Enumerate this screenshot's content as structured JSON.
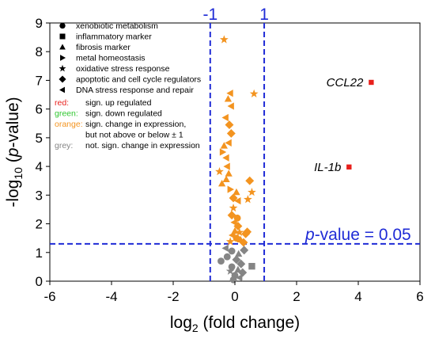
{
  "chart_data": {
    "type": "scatter",
    "xlabel": "log₂ (fold change)",
    "ylabel": "-log₁₀ (p-value)",
    "xlim": [
      -6,
      6
    ],
    "ylim": [
      0,
      9
    ],
    "xticks": [
      -6,
      -4,
      -2,
      0,
      2,
      4,
      6
    ],
    "yticks": [
      0,
      1,
      2,
      3,
      4,
      5,
      6,
      7,
      8,
      9
    ],
    "thresholds": {
      "vertical": [
        {
          "x": -0.8,
          "label": "-1"
        },
        {
          "x": 0.95,
          "label": "1"
        }
      ],
      "horizontal": {
        "y": 1.3,
        "label_prefix": "p",
        "label_suffix": "-value = 0.05"
      }
    },
    "marker_legend": [
      {
        "shape": "circle",
        "label": "xenobiotic metabolism"
      },
      {
        "shape": "square",
        "label": "inflammatory marker"
      },
      {
        "shape": "triangle-up",
        "label": "fibrosis marker"
      },
      {
        "shape": "triangle-right",
        "label": "metal homeostasis"
      },
      {
        "shape": "star",
        "label": "oxidative stress response"
      },
      {
        "shape": "diamond",
        "label": "apoptotic and cell cycle regulators"
      },
      {
        "shape": "triangle-left",
        "label": "DNA stress response and repair"
      }
    ],
    "color_legend": [
      {
        "key": "red:",
        "desc": "sign. up regulated",
        "color": "#e8201c"
      },
      {
        "key": "green:",
        "desc": "sign. down regulated",
        "color": "#2fc72f"
      },
      {
        "key": "orange:",
        "desc": "sign. change in expression,",
        "desc2": "but not above or below ± 1",
        "color": "#f39420"
      },
      {
        "key": "grey:",
        "desc": "not. sign. change in expression",
        "color": "#858585"
      }
    ],
    "colors": {
      "red": "#e8201c",
      "orange": "#f39420",
      "grey": "#858585",
      "threshold": "#1f2bd6"
    },
    "labeled_points": [
      {
        "label": "CCL22",
        "x": 4.42,
        "y": 6.93,
        "shape": "square",
        "color": "red"
      },
      {
        "label": "IL-1b",
        "x": 3.7,
        "y": 3.98,
        "shape": "square",
        "color": "red"
      }
    ],
    "points": [
      {
        "x": -0.35,
        "y": 8.42,
        "shape": "star",
        "color": "orange"
      },
      {
        "x": 0.62,
        "y": 6.53,
        "shape": "star",
        "color": "orange"
      },
      {
        "x": -0.15,
        "y": 6.55,
        "shape": "triangle-left",
        "color": "orange"
      },
      {
        "x": -0.12,
        "y": 6.1,
        "shape": "triangle-left",
        "color": "orange"
      },
      {
        "x": -0.22,
        "y": 6.35,
        "shape": "triangle-up",
        "color": "orange"
      },
      {
        "x": -0.3,
        "y": 5.7,
        "shape": "triangle-left",
        "color": "orange"
      },
      {
        "x": -0.18,
        "y": 5.45,
        "shape": "diamond",
        "color": "orange"
      },
      {
        "x": -0.12,
        "y": 5.15,
        "shape": "diamond",
        "color": "orange"
      },
      {
        "x": -0.2,
        "y": 4.82,
        "shape": "triangle-left",
        "color": "orange"
      },
      {
        "x": -0.35,
        "y": 4.72,
        "shape": "triangle-up",
        "color": "orange"
      },
      {
        "x": -0.4,
        "y": 4.5,
        "shape": "triangle-right",
        "color": "orange"
      },
      {
        "x": -0.28,
        "y": 4.3,
        "shape": "triangle-left",
        "color": "orange"
      },
      {
        "x": -0.25,
        "y": 4.0,
        "shape": "triangle-left",
        "color": "orange"
      },
      {
        "x": -0.5,
        "y": 3.82,
        "shape": "star",
        "color": "orange"
      },
      {
        "x": -0.2,
        "y": 3.75,
        "shape": "triangle-up",
        "color": "orange"
      },
      {
        "x": -0.28,
        "y": 3.55,
        "shape": "triangle-up",
        "color": "orange"
      },
      {
        "x": -0.42,
        "y": 3.4,
        "shape": "triangle-up",
        "color": "orange"
      },
      {
        "x": -0.15,
        "y": 3.2,
        "shape": "triangle-right",
        "color": "orange"
      },
      {
        "x": 0.05,
        "y": 3.1,
        "shape": "triangle-up",
        "color": "orange"
      },
      {
        "x": -0.05,
        "y": 2.9,
        "shape": "diamond",
        "color": "orange"
      },
      {
        "x": 0.1,
        "y": 2.8,
        "shape": "triangle-left",
        "color": "orange"
      },
      {
        "x": 0.48,
        "y": 3.5,
        "shape": "diamond",
        "color": "orange"
      },
      {
        "x": 0.55,
        "y": 3.1,
        "shape": "star",
        "color": "orange"
      },
      {
        "x": 0.42,
        "y": 2.85,
        "shape": "star",
        "color": "orange"
      },
      {
        "x": -0.05,
        "y": 2.55,
        "shape": "star",
        "color": "orange"
      },
      {
        "x": -0.1,
        "y": 2.3,
        "shape": "diamond",
        "color": "orange"
      },
      {
        "x": 0.08,
        "y": 2.2,
        "shape": "circle",
        "color": "orange"
      },
      {
        "x": -0.02,
        "y": 2.05,
        "shape": "triangle-left",
        "color": "orange"
      },
      {
        "x": 0.1,
        "y": 1.92,
        "shape": "diamond",
        "color": "orange"
      },
      {
        "x": 0.0,
        "y": 1.75,
        "shape": "triangle-up",
        "color": "orange"
      },
      {
        "x": 0.15,
        "y": 1.7,
        "shape": "star",
        "color": "orange"
      },
      {
        "x": 0.35,
        "y": 1.65,
        "shape": "diamond",
        "color": "orange"
      },
      {
        "x": 0.4,
        "y": 1.72,
        "shape": "diamond",
        "color": "orange"
      },
      {
        "x": -0.08,
        "y": 1.6,
        "shape": "triangle-left",
        "color": "orange"
      },
      {
        "x": 0.05,
        "y": 1.5,
        "shape": "circle",
        "color": "orange"
      },
      {
        "x": 0.18,
        "y": 1.45,
        "shape": "triangle-up",
        "color": "orange"
      },
      {
        "x": -0.15,
        "y": 1.38,
        "shape": "star",
        "color": "orange"
      },
      {
        "x": 0.28,
        "y": 1.35,
        "shape": "diamond",
        "color": "orange"
      },
      {
        "x": -0.3,
        "y": 1.15,
        "shape": "triangle-left",
        "color": "grey"
      },
      {
        "x": -0.1,
        "y": 1.05,
        "shape": "circle",
        "color": "grey"
      },
      {
        "x": 0.3,
        "y": 1.08,
        "shape": "diamond",
        "color": "grey"
      },
      {
        "x": 0.12,
        "y": 0.95,
        "shape": "triangle-up",
        "color": "grey"
      },
      {
        "x": -0.25,
        "y": 0.85,
        "shape": "circle",
        "color": "grey"
      },
      {
        "x": -0.45,
        "y": 0.7,
        "shape": "circle",
        "color": "grey"
      },
      {
        "x": 0.05,
        "y": 0.75,
        "shape": "diamond",
        "color": "grey"
      },
      {
        "x": 0.2,
        "y": 0.6,
        "shape": "diamond",
        "color": "grey"
      },
      {
        "x": -0.1,
        "y": 0.5,
        "shape": "circle",
        "color": "grey"
      },
      {
        "x": 0.55,
        "y": 0.52,
        "shape": "square",
        "color": "grey"
      },
      {
        "x": 0.1,
        "y": 0.4,
        "shape": "triangle-up",
        "color": "grey"
      },
      {
        "x": -0.15,
        "y": 0.35,
        "shape": "star",
        "color": "grey"
      },
      {
        "x": 0.25,
        "y": 0.3,
        "shape": "diamond",
        "color": "grey"
      },
      {
        "x": 0.0,
        "y": 0.2,
        "shape": "circle",
        "color": "grey"
      },
      {
        "x": 0.15,
        "y": 0.12,
        "shape": "triangle-left",
        "color": "grey"
      },
      {
        "x": -0.05,
        "y": 0.05,
        "shape": "circle",
        "color": "grey"
      }
    ]
  }
}
